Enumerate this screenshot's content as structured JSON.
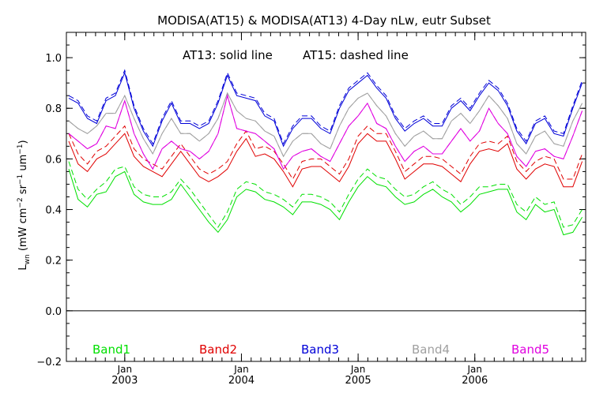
{
  "chart_data": {
    "type": "line",
    "title": "MODISA(AT15) & MODISA(AT13) 4-Day nLw, eutr Subset",
    "annotation": {
      "solid": "AT13: solid line",
      "dashed": "AT15: dashed line"
    },
    "ylabel_main": "L",
    "ylabel_sub": "wn",
    "ylabel_units": "(mW cm",
    "ylabel_units_sup1": "−2",
    "ylabel_units_mid": " sr",
    "ylabel_units_sup2": "−1",
    "ylabel_units_mid2": " um",
    "ylabel_units_sup3": "−1",
    "ylabel_units_end": ")",
    "xlim": [
      2002.5,
      2006.95
    ],
    "ylim": [
      -0.2,
      1.1
    ],
    "yticks": [
      {
        "v": -0.2,
        "label": "−0.2"
      },
      {
        "v": 0.0,
        "label": "0.0"
      },
      {
        "v": 0.2,
        "label": "0.2"
      },
      {
        "v": 0.4,
        "label": "0.4"
      },
      {
        "v": 0.6,
        "label": "0.6"
      },
      {
        "v": 0.8,
        "label": "0.8"
      },
      {
        "v": 1.0,
        "label": "1.0"
      }
    ],
    "xticks": [
      {
        "v": 2003.0,
        "month": "Jan",
        "year": "2003"
      },
      {
        "v": 2004.0,
        "month": "Jan",
        "year": "2004"
      },
      {
        "v": 2005.0,
        "month": "Jan",
        "year": "2005"
      },
      {
        "v": 2006.0,
        "month": "Jan",
        "year": "2006"
      }
    ],
    "zero_line": 0.0,
    "x": [
      2002.52,
      2002.6,
      2002.68,
      2002.76,
      2002.84,
      2002.92,
      2003.0,
      2003.08,
      2003.16,
      2003.24,
      2003.32,
      2003.4,
      2003.48,
      2003.56,
      2003.64,
      2003.72,
      2003.8,
      2003.88,
      2003.96,
      2004.04,
      2004.12,
      2004.2,
      2004.28,
      2004.36,
      2004.44,
      2004.52,
      2004.6,
      2004.68,
      2004.76,
      2004.84,
      2004.92,
      2005.0,
      2005.08,
      2005.16,
      2005.24,
      2005.32,
      2005.4,
      2005.48,
      2005.56,
      2005.64,
      2005.72,
      2005.8,
      2005.88,
      2005.96,
      2006.04,
      2006.12,
      2006.2,
      2006.28,
      2006.36,
      2006.44,
      2006.52,
      2006.6,
      2006.68,
      2006.76,
      2006.84,
      2006.92
    ],
    "series": [
      {
        "name": "Band1",
        "color": "#00e000",
        "solid": [
          0.56,
          0.44,
          0.41,
          0.46,
          0.47,
          0.53,
          0.55,
          0.46,
          0.43,
          0.42,
          0.42,
          0.44,
          0.5,
          0.45,
          0.4,
          0.35,
          0.31,
          0.36,
          0.45,
          0.48,
          0.47,
          0.44,
          0.43,
          0.41,
          0.38,
          0.43,
          0.43,
          0.42,
          0.4,
          0.36,
          0.43,
          0.49,
          0.53,
          0.5,
          0.49,
          0.45,
          0.42,
          0.43,
          0.46,
          0.48,
          0.45,
          0.43,
          0.39,
          0.42,
          0.46,
          0.47,
          0.48,
          0.48,
          0.39,
          0.36,
          0.42,
          0.39,
          0.4,
          0.3,
          0.31,
          0.37
        ],
        "dashed": [
          0.59,
          0.48,
          0.44,
          0.48,
          0.51,
          0.56,
          0.57,
          0.49,
          0.46,
          0.45,
          0.45,
          0.47,
          0.52,
          0.48,
          0.43,
          0.38,
          0.33,
          0.39,
          0.48,
          0.51,
          0.5,
          0.47,
          0.46,
          0.44,
          0.41,
          0.46,
          0.46,
          0.45,
          0.43,
          0.39,
          0.46,
          0.52,
          0.56,
          0.53,
          0.52,
          0.48,
          0.45,
          0.46,
          0.49,
          0.51,
          0.48,
          0.46,
          0.42,
          0.45,
          0.49,
          0.49,
          0.5,
          0.5,
          0.42,
          0.39,
          0.45,
          0.42,
          0.43,
          0.33,
          0.34,
          0.4
        ]
      },
      {
        "name": "Band2",
        "color": "#e00000",
        "solid": [
          0.67,
          0.58,
          0.55,
          0.6,
          0.62,
          0.66,
          0.7,
          0.61,
          0.57,
          0.55,
          0.53,
          0.58,
          0.63,
          0.58,
          0.53,
          0.51,
          0.53,
          0.56,
          0.63,
          0.68,
          0.61,
          0.62,
          0.6,
          0.55,
          0.49,
          0.56,
          0.57,
          0.57,
          0.54,
          0.51,
          0.57,
          0.66,
          0.7,
          0.67,
          0.67,
          0.6,
          0.52,
          0.55,
          0.58,
          0.58,
          0.57,
          0.54,
          0.51,
          0.58,
          0.63,
          0.64,
          0.63,
          0.66,
          0.56,
          0.52,
          0.56,
          0.58,
          0.57,
          0.49,
          0.49,
          0.59
        ],
        "dashed": [
          0.7,
          0.62,
          0.58,
          0.63,
          0.65,
          0.69,
          0.73,
          0.64,
          0.6,
          0.58,
          0.56,
          0.61,
          0.66,
          0.61,
          0.56,
          0.54,
          0.56,
          0.59,
          0.66,
          0.71,
          0.64,
          0.65,
          0.63,
          0.58,
          0.52,
          0.59,
          0.6,
          0.6,
          0.57,
          0.54,
          0.6,
          0.69,
          0.73,
          0.7,
          0.7,
          0.63,
          0.55,
          0.58,
          0.61,
          0.61,
          0.6,
          0.57,
          0.54,
          0.61,
          0.66,
          0.67,
          0.66,
          0.69,
          0.59,
          0.55,
          0.59,
          0.61,
          0.6,
          0.52,
          0.52,
          0.62
        ]
      },
      {
        "name": "Band3",
        "color": "#0000d8",
        "solid": [
          0.84,
          0.82,
          0.76,
          0.74,
          0.83,
          0.85,
          0.94,
          0.8,
          0.71,
          0.65,
          0.75,
          0.82,
          0.74,
          0.74,
          0.72,
          0.74,
          0.82,
          0.93,
          0.85,
          0.84,
          0.83,
          0.77,
          0.75,
          0.65,
          0.72,
          0.76,
          0.76,
          0.72,
          0.7,
          0.8,
          0.87,
          0.9,
          0.93,
          0.88,
          0.84,
          0.76,
          0.71,
          0.74,
          0.76,
          0.73,
          0.73,
          0.8,
          0.83,
          0.79,
          0.85,
          0.9,
          0.87,
          0.81,
          0.71,
          0.66,
          0.74,
          0.76,
          0.7,
          0.69,
          0.8,
          0.9
        ],
        "dashed": [
          0.85,
          0.83,
          0.77,
          0.75,
          0.84,
          0.86,
          0.95,
          0.81,
          0.72,
          0.66,
          0.76,
          0.83,
          0.75,
          0.75,
          0.73,
          0.75,
          0.83,
          0.94,
          0.86,
          0.85,
          0.84,
          0.78,
          0.76,
          0.66,
          0.73,
          0.77,
          0.77,
          0.73,
          0.71,
          0.81,
          0.88,
          0.91,
          0.94,
          0.89,
          0.85,
          0.77,
          0.72,
          0.75,
          0.77,
          0.74,
          0.74,
          0.81,
          0.84,
          0.8,
          0.86,
          0.91,
          0.88,
          0.82,
          0.72,
          0.67,
          0.75,
          0.77,
          0.71,
          0.7,
          0.81,
          0.91
        ]
      },
      {
        "name": "Band4",
        "color": "#a0a0a0",
        "solid": [
          0.75,
          0.72,
          0.7,
          0.73,
          0.78,
          0.78,
          0.85,
          0.76,
          0.68,
          0.62,
          0.7,
          0.76,
          0.7,
          0.7,
          0.67,
          0.7,
          0.76,
          0.86,
          0.79,
          0.76,
          0.75,
          0.71,
          0.69,
          0.61,
          0.67,
          0.7,
          0.7,
          0.66,
          0.64,
          0.73,
          0.8,
          0.84,
          0.86,
          0.81,
          0.77,
          0.7,
          0.65,
          0.69,
          0.71,
          0.68,
          0.68,
          0.75,
          0.78,
          0.74,
          0.79,
          0.85,
          0.81,
          0.76,
          0.66,
          0.62,
          0.69,
          0.71,
          0.66,
          0.65,
          0.75,
          0.82
        ],
        "dashed": [
          0.75,
          0.72,
          0.7,
          0.73,
          0.78,
          0.78,
          0.85,
          0.76,
          0.68,
          0.62,
          0.7,
          0.76,
          0.7,
          0.7,
          0.67,
          0.7,
          0.76,
          0.86,
          0.79,
          0.76,
          0.75,
          0.71,
          0.69,
          0.61,
          0.67,
          0.7,
          0.7,
          0.66,
          0.64,
          0.73,
          0.8,
          0.84,
          0.86,
          0.81,
          0.77,
          0.7,
          0.65,
          0.69,
          0.71,
          0.68,
          0.68,
          0.75,
          0.78,
          0.74,
          0.79,
          0.85,
          0.81,
          0.76,
          0.66,
          0.62,
          0.69,
          0.71,
          0.66,
          0.65,
          0.75,
          0.82
        ]
      },
      {
        "name": "Band5",
        "color": "#e000e0",
        "solid": [
          0.7,
          0.67,
          0.64,
          0.66,
          0.73,
          0.72,
          0.83,
          0.7,
          0.62,
          0.56,
          0.64,
          0.67,
          0.64,
          0.63,
          0.6,
          0.63,
          0.7,
          0.85,
          0.72,
          0.71,
          0.7,
          0.67,
          0.64,
          0.56,
          0.61,
          0.63,
          0.64,
          0.61,
          0.59,
          0.66,
          0.73,
          0.77,
          0.82,
          0.74,
          0.72,
          0.65,
          0.59,
          0.63,
          0.65,
          0.62,
          0.62,
          0.67,
          0.72,
          0.67,
          0.71,
          0.8,
          0.74,
          0.7,
          0.61,
          0.57,
          0.63,
          0.64,
          0.61,
          0.6,
          0.69,
          0.79
        ],
        "dashed": [
          0.7,
          0.67,
          0.64,
          0.66,
          0.73,
          0.72,
          0.83,
          0.7,
          0.62,
          0.56,
          0.64,
          0.67,
          0.64,
          0.63,
          0.6,
          0.63,
          0.7,
          0.85,
          0.72,
          0.71,
          0.7,
          0.67,
          0.64,
          0.56,
          0.61,
          0.63,
          0.64,
          0.61,
          0.59,
          0.66,
          0.73,
          0.77,
          0.82,
          0.74,
          0.72,
          0.65,
          0.59,
          0.63,
          0.65,
          0.62,
          0.62,
          0.67,
          0.72,
          0.67,
          0.71,
          0.8,
          0.74,
          0.7,
          0.61,
          0.57,
          0.63,
          0.64,
          0.61,
          0.6,
          0.69,
          0.79
        ]
      }
    ],
    "grid": false,
    "legend_placement": "bottom inside plot, one label per band"
  }
}
